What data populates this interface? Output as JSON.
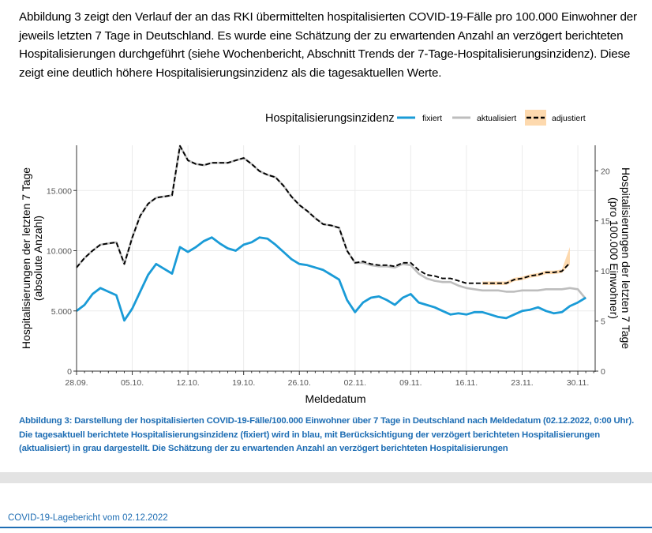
{
  "intro_text": "Abbildung 3 zeigt den Verlauf der an das RKI übermittelten hospitalisierten COVID-19-Fälle pro 100.000 Einwohner der jeweils letzten 7 Tage in Deutschland. Es wurde eine Schätzung der zu erwartenden Anzahl an verzögert berichteten Hospitalisierungen durchgeführt (siehe Wochenbericht, Abschnitt Trends der 7-Tage-Hospitalisierungsinzidenz). Diese zeigt eine deutlich höhere Hospitalisierungsinzidenz als die tagesaktuellen Werte.",
  "caption": "Abbildung 3: Darstellung der hospitalisierten COVID-19-Fälle/100.000 Einwohner über 7 Tage in Deutschland nach Meldedatum (02.12.2022, 0:00 Uhr). Die tagesaktuell berichtete Hospitalisierungsinzidenz (fixiert) wird in blau, mit Berücksichtigung der verzögert berichteten Hospitalisierungen (aktualisiert) in grau dargestellt. Die Schätzung der zu erwartenden Anzahl an verzögert berichteten Hospitalisierungen",
  "footer": "COVID-19-Lagebericht vom 02.12.2022",
  "colors": {
    "fixiert": "#1a9bd7",
    "aktualisiert": "#bdbdbd",
    "adjustiert": "#000000",
    "adjustiert_band": "#fdd9ae",
    "caption": "#1f6eb4",
    "grid": "#ebebeb"
  },
  "chart_data": {
    "type": "line",
    "title": "",
    "legend": {
      "title": "Hospitalisierungsinzidenz",
      "placement": "top",
      "entries": [
        "fixiert",
        "aktualisiert",
        "adjustiert"
      ]
    },
    "xlabel": "Meldedatum",
    "ylabel_left": "Hospitalisierungen der letzten 7 Tage\n(absolute Anzahl)",
    "ylabel_right": "Hospitalisierungen der letzten 7 Tage\n(pro 100.000 Einwohner)",
    "x_tick_labels": [
      "28.09.",
      "05.10.",
      "12.10.",
      "19.10.",
      "26.10.",
      "02.11.",
      "09.11.",
      "16.11.",
      "23.11.",
      "30.11."
    ],
    "x_start_date": "28.09.",
    "x_days_total": 65,
    "y_left_ticks": [
      {
        "v": 0,
        "label": "0"
      },
      {
        "v": 5000,
        "label": "5.000"
      },
      {
        "v": 10000,
        "label": "10.000"
      },
      {
        "v": 15000,
        "label": "15.000"
      }
    ],
    "y_right_ticks": [
      {
        "v": 0,
        "label": "0"
      },
      {
        "v": 5,
        "label": "5"
      },
      {
        "v": 10,
        "label": "10"
      },
      {
        "v": 15,
        "label": "15"
      },
      {
        "v": 20,
        "label": "20"
      }
    ],
    "y_left_lim": [
      0,
      18600
    ],
    "y_right_per_left": 0.001202,
    "grid": true,
    "series": [
      {
        "name": "fixiert",
        "values": [
          5000,
          5500,
          6400,
          6900,
          6600,
          6300,
          4200,
          5200,
          6600,
          8000,
          8900,
          8500,
          8100,
          10300,
          9900,
          10300,
          10800,
          11100,
          10600,
          10200,
          10000,
          10500,
          10700,
          11100,
          11000,
          10500,
          9900,
          9300,
          8900,
          8800,
          8600,
          8400,
          8000,
          7600,
          5900,
          4900,
          5700,
          6100,
          6200,
          5900,
          5500,
          6100,
          6400,
          5700,
          5500,
          5300,
          5000,
          4700,
          4800,
          4700,
          4900,
          4900,
          4700,
          4500,
          4400,
          4700,
          5000,
          5100,
          5300,
          5000,
          4800,
          4900,
          5400,
          5700,
          6100
        ]
      },
      {
        "name": "aktualisiert",
        "values": [
          8600,
          9400,
          10000,
          10500,
          10600,
          10700,
          8900,
          11100,
          12900,
          13900,
          14400,
          14500,
          14600,
          18700,
          17500,
          17200,
          17100,
          17300,
          17300,
          17300,
          17500,
          17700,
          17200,
          16600,
          16300,
          16100,
          15400,
          14500,
          13800,
          13300,
          12700,
          12200,
          12100,
          11900,
          10000,
          9000,
          9000,
          8800,
          8700,
          8700,
          8600,
          8900,
          8800,
          8100,
          7700,
          7500,
          7400,
          7400,
          7100,
          6900,
          6800,
          6700,
          6700,
          6700,
          6600,
          6600,
          6700,
          6700,
          6700,
          6800,
          6800,
          6800,
          6900,
          6800,
          6000
        ]
      },
      {
        "name": "adjustiert",
        "values": [
          8600,
          9400,
          10000,
          10500,
          10600,
          10700,
          8900,
          11100,
          12900,
          13900,
          14400,
          14500,
          14600,
          18700,
          17500,
          17200,
          17100,
          17300,
          17300,
          17300,
          17500,
          17700,
          17200,
          16600,
          16300,
          16100,
          15400,
          14500,
          13800,
          13300,
          12700,
          12200,
          12100,
          11900,
          10000,
          9000,
          9100,
          8900,
          8800,
          8800,
          8700,
          9000,
          9000,
          8400,
          8000,
          7900,
          7700,
          7700,
          7500,
          7300,
          7300,
          7300,
          7300,
          7300,
          7300,
          7600,
          7700,
          7900,
          8000,
          8200,
          8200,
          8300,
          9000,
          null,
          null
        ],
        "band_upper_last": 10300
      }
    ]
  }
}
